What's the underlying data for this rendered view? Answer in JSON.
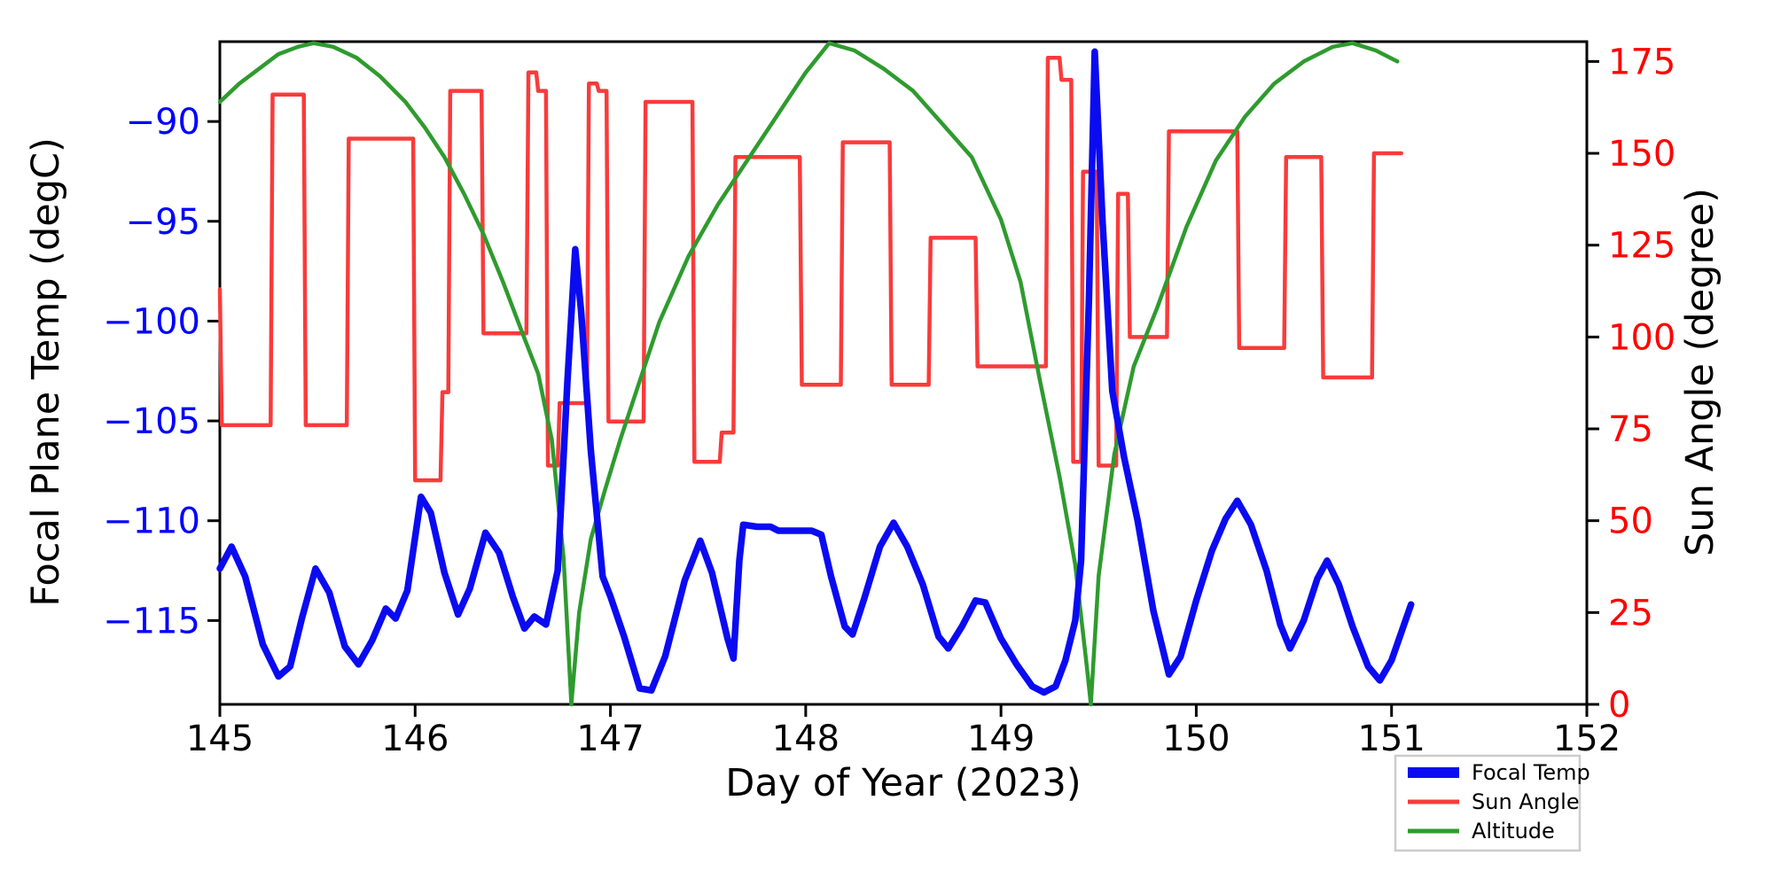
{
  "chart_data": {
    "type": "line",
    "title": "",
    "xlabel": "Day of Year (2023)",
    "ylabel_left": "Focal Plane Temp (degC)",
    "ylabel_right": "Sun Angle (degree)",
    "xlim": [
      145,
      152
    ],
    "ylim_left": [
      -119.2,
      -86.0
    ],
    "ylim_right": [
      0,
      180.4
    ],
    "x_ticks": [
      145,
      146,
      147,
      148,
      149,
      150,
      151,
      152
    ],
    "y_ticks_left": [
      -115,
      -110,
      -105,
      -100,
      -95,
      -90
    ],
    "y_ticks_right": [
      0,
      25,
      50,
      75,
      100,
      125,
      150,
      175
    ],
    "grid": false,
    "colors": {
      "focal_temp": "#0b0bf2",
      "sun_angle": "#f93b3b",
      "altitude": "#2e9b2e",
      "left_tick_labels": "#0000ff",
      "right_tick_labels": "#ff0000",
      "axes": "#000000",
      "legend_border": "#cccccc",
      "background": "#ffffff"
    },
    "legend": {
      "position": "lower-right-outside",
      "entries": [
        {
          "label": "Focal Temp",
          "color": "#0b0bf2",
          "line_width": 12
        },
        {
          "label": "Sun Angle",
          "color": "#f93b3b",
          "line_width": 5
        },
        {
          "label": "Altitude",
          "color": "#2e9b2e",
          "line_width": 5
        }
      ]
    },
    "series": [
      {
        "name": "Sun Angle",
        "axis": "right",
        "color": "#f93b3b",
        "line_width": 4.5,
        "points": [
          [
            145.0,
            113
          ],
          [
            145.01,
            76
          ],
          [
            145.26,
            76
          ],
          [
            145.27,
            166
          ],
          [
            145.43,
            166
          ],
          [
            145.44,
            76
          ],
          [
            145.65,
            76
          ],
          [
            145.66,
            154
          ],
          [
            145.99,
            154
          ],
          [
            146.0,
            61
          ],
          [
            146.13,
            61
          ],
          [
            146.14,
            85
          ],
          [
            146.17,
            85
          ],
          [
            146.18,
            167
          ],
          [
            146.34,
            167
          ],
          [
            146.35,
            101
          ],
          [
            146.57,
            101
          ],
          [
            146.58,
            172
          ],
          [
            146.62,
            172
          ],
          [
            146.63,
            167
          ],
          [
            146.67,
            167
          ],
          [
            146.68,
            65
          ],
          [
            146.73,
            65
          ],
          [
            146.74,
            82
          ],
          [
            146.88,
            82
          ],
          [
            146.89,
            169
          ],
          [
            146.93,
            169
          ],
          [
            146.94,
            167
          ],
          [
            146.98,
            167
          ],
          [
            146.99,
            77
          ],
          [
            147.17,
            77
          ],
          [
            147.18,
            164
          ],
          [
            147.42,
            164
          ],
          [
            147.43,
            66
          ],
          [
            147.56,
            66
          ],
          [
            147.57,
            74
          ],
          [
            147.63,
            74
          ],
          [
            147.64,
            149
          ],
          [
            147.97,
            149
          ],
          [
            147.98,
            87
          ],
          [
            148.18,
            87
          ],
          [
            148.19,
            153
          ],
          [
            148.43,
            153
          ],
          [
            148.44,
            87
          ],
          [
            148.63,
            87
          ],
          [
            148.64,
            127
          ],
          [
            148.87,
            127
          ],
          [
            148.88,
            92
          ],
          [
            149.23,
            92
          ],
          [
            149.24,
            176
          ],
          [
            149.3,
            176
          ],
          [
            149.31,
            170
          ],
          [
            149.36,
            170
          ],
          [
            149.37,
            66
          ],
          [
            149.41,
            66
          ],
          [
            149.42,
            145
          ],
          [
            149.49,
            145
          ],
          [
            149.5,
            65
          ],
          [
            149.59,
            65
          ],
          [
            149.6,
            139
          ],
          [
            149.65,
            139
          ],
          [
            149.66,
            100
          ],
          [
            149.85,
            100
          ],
          [
            149.86,
            156
          ],
          [
            150.21,
            156
          ],
          [
            150.22,
            97
          ],
          [
            150.45,
            97
          ],
          [
            150.46,
            149
          ],
          [
            150.64,
            149
          ],
          [
            150.65,
            89
          ],
          [
            150.9,
            89
          ],
          [
            150.91,
            150
          ],
          [
            151.05,
            150
          ]
        ]
      },
      {
        "name": "Altitude",
        "axis": "right",
        "color": "#2e9b2e",
        "line_width": 4.5,
        "points": [
          [
            145.0,
            164
          ],
          [
            145.1,
            169
          ],
          [
            145.2,
            173
          ],
          [
            145.3,
            177
          ],
          [
            145.4,
            179
          ],
          [
            145.48,
            180
          ],
          [
            145.58,
            179
          ],
          [
            145.7,
            176
          ],
          [
            145.82,
            171
          ],
          [
            145.95,
            164
          ],
          [
            146.05,
            157
          ],
          [
            146.15,
            149
          ],
          [
            146.25,
            139
          ],
          [
            146.35,
            128
          ],
          [
            146.45,
            115
          ],
          [
            146.55,
            101
          ],
          [
            146.63,
            90
          ],
          [
            146.7,
            72
          ],
          [
            146.76,
            40
          ],
          [
            146.8,
            0
          ],
          [
            146.84,
            25
          ],
          [
            146.9,
            45
          ],
          [
            146.97,
            58
          ],
          [
            147.05,
            72
          ],
          [
            147.15,
            88
          ],
          [
            147.25,
            104
          ],
          [
            147.4,
            122
          ],
          [
            147.55,
            136
          ],
          [
            147.7,
            148
          ],
          [
            147.85,
            160
          ],
          [
            148.0,
            172
          ],
          [
            148.12,
            180
          ],
          [
            148.25,
            178
          ],
          [
            148.4,
            173
          ],
          [
            148.55,
            167
          ],
          [
            148.7,
            158
          ],
          [
            148.85,
            149
          ],
          [
            149.0,
            132
          ],
          [
            149.1,
            115
          ],
          [
            149.2,
            88
          ],
          [
            149.3,
            62
          ],
          [
            149.38,
            38
          ],
          [
            149.44,
            10
          ],
          [
            149.46,
            0
          ],
          [
            149.5,
            35
          ],
          [
            149.58,
            68
          ],
          [
            149.68,
            92
          ],
          [
            149.8,
            108
          ],
          [
            149.95,
            130
          ],
          [
            150.1,
            148
          ],
          [
            150.25,
            160
          ],
          [
            150.4,
            169
          ],
          [
            150.55,
            175
          ],
          [
            150.7,
            179
          ],
          [
            150.8,
            180
          ],
          [
            150.92,
            178
          ],
          [
            151.03,
            175
          ]
        ]
      },
      {
        "name": "Focal Temp",
        "axis": "left",
        "color": "#0b0bf2",
        "line_width": 7.5,
        "points": [
          [
            145.0,
            -112.4
          ],
          [
            145.06,
            -111.3
          ],
          [
            145.13,
            -112.8
          ],
          [
            145.22,
            -116.2
          ],
          [
            145.3,
            -117.8
          ],
          [
            145.36,
            -117.3
          ],
          [
            145.42,
            -114.9
          ],
          [
            145.49,
            -112.4
          ],
          [
            145.56,
            -113.6
          ],
          [
            145.64,
            -116.3
          ],
          [
            145.71,
            -117.2
          ],
          [
            145.78,
            -116.0
          ],
          [
            145.85,
            -114.4
          ],
          [
            145.9,
            -114.9
          ],
          [
            145.96,
            -113.5
          ],
          [
            146.03,
            -108.8
          ],
          [
            146.08,
            -109.6
          ],
          [
            146.15,
            -112.6
          ],
          [
            146.22,
            -114.7
          ],
          [
            146.28,
            -113.4
          ],
          [
            146.36,
            -110.6
          ],
          [
            146.43,
            -111.6
          ],
          [
            146.5,
            -113.8
          ],
          [
            146.56,
            -115.4
          ],
          [
            146.61,
            -114.8
          ],
          [
            146.67,
            -115.2
          ],
          [
            146.73,
            -112.5
          ],
          [
            146.78,
            -103.0
          ],
          [
            146.82,
            -96.4
          ],
          [
            146.85,
            -99.5
          ],
          [
            146.9,
            -106.5
          ],
          [
            146.96,
            -112.8
          ],
          [
            147.0,
            -113.8
          ],
          [
            147.07,
            -115.8
          ],
          [
            147.15,
            -118.4
          ],
          [
            147.21,
            -118.5
          ],
          [
            147.28,
            -116.8
          ],
          [
            147.38,
            -113.0
          ],
          [
            147.46,
            -111.0
          ],
          [
            147.52,
            -112.6
          ],
          [
            147.6,
            -115.9
          ],
          [
            147.63,
            -116.9
          ],
          [
            147.66,
            -112.0
          ],
          [
            147.68,
            -110.2
          ],
          [
            147.75,
            -110.3
          ],
          [
            147.82,
            -110.3
          ],
          [
            147.86,
            -110.5
          ],
          [
            147.95,
            -110.5
          ],
          [
            148.03,
            -110.5
          ],
          [
            148.08,
            -110.7
          ],
          [
            148.13,
            -112.8
          ],
          [
            148.2,
            -115.3
          ],
          [
            148.24,
            -115.7
          ],
          [
            148.3,
            -113.9
          ],
          [
            148.38,
            -111.3
          ],
          [
            148.45,
            -110.1
          ],
          [
            148.52,
            -111.3
          ],
          [
            148.6,
            -113.2
          ],
          [
            148.68,
            -115.8
          ],
          [
            148.73,
            -116.4
          ],
          [
            148.8,
            -115.3
          ],
          [
            148.87,
            -114.0
          ],
          [
            148.92,
            -114.1
          ],
          [
            149.0,
            -115.9
          ],
          [
            149.08,
            -117.2
          ],
          [
            149.16,
            -118.3
          ],
          [
            149.22,
            -118.6
          ],
          [
            149.28,
            -118.3
          ],
          [
            149.33,
            -117.0
          ],
          [
            149.38,
            -115.0
          ],
          [
            149.41,
            -112.0
          ],
          [
            149.45,
            -99.0
          ],
          [
            149.48,
            -86.5
          ],
          [
            149.52,
            -95.0
          ],
          [
            149.57,
            -103.5
          ],
          [
            149.63,
            -106.8
          ],
          [
            149.7,
            -110.0
          ],
          [
            149.78,
            -114.5
          ],
          [
            149.86,
            -117.7
          ],
          [
            149.92,
            -116.8
          ],
          [
            150.0,
            -114.0
          ],
          [
            150.08,
            -111.5
          ],
          [
            150.15,
            -109.9
          ],
          [
            150.21,
            -109.0
          ],
          [
            150.28,
            -110.2
          ],
          [
            150.36,
            -112.5
          ],
          [
            150.43,
            -115.2
          ],
          [
            150.48,
            -116.4
          ],
          [
            150.55,
            -115.0
          ],
          [
            150.62,
            -112.9
          ],
          [
            150.67,
            -112.0
          ],
          [
            150.73,
            -113.2
          ],
          [
            150.8,
            -115.3
          ],
          [
            150.88,
            -117.3
          ],
          [
            150.94,
            -118.0
          ],
          [
            151.0,
            -117.0
          ],
          [
            151.05,
            -115.6
          ],
          [
            151.1,
            -114.2
          ]
        ]
      }
    ]
  }
}
